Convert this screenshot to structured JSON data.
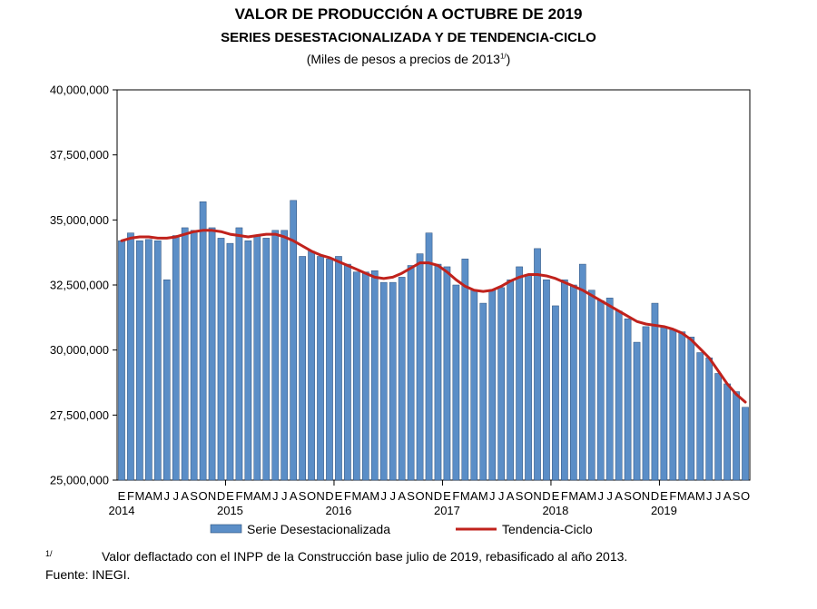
{
  "titles": {
    "main": "VALOR DE PRODUCCIÓN A OCTUBRE DE 2019",
    "sub": "SERIES DESESTACIONALIZADA Y DE TENDENCIA-CICLO",
    "unit_text": "(Miles de pesos a precios de 2013",
    "unit_sup": "1/",
    "unit_close": ")"
  },
  "footnotes": {
    "mark": "1/",
    "note": "Valor deflactado con el INPP de la Construcción base julio de 2019, rebasificado al año 2013.",
    "source": "Fuente: INEGI."
  },
  "colors": {
    "bar": "#5b8ec7",
    "bar_edge": "#2c4f7a",
    "trend": "#c0221c"
  },
  "chart_data": {
    "type": "bar",
    "y_tick_labels": [
      "25,000,000",
      "27,500,000",
      "30,000,000",
      "32,500,000",
      "35,000,000",
      "37,500,000",
      "40,000,000"
    ],
    "y_ticks": [
      25000000,
      27500000,
      30000000,
      32500000,
      35000000,
      37500000,
      40000000
    ],
    "ylim": [
      25000000,
      40000000
    ],
    "month_letters": [
      "E",
      "F",
      "M",
      "A",
      "M",
      "J",
      "J",
      "A",
      "S",
      "O",
      "N",
      "D",
      "E",
      "F",
      "M",
      "A",
      "M",
      "J",
      "J",
      "A",
      "S",
      "O",
      "N",
      "D",
      "E",
      "F",
      "M",
      "A",
      "M",
      "J",
      "J",
      "A",
      "S",
      "O",
      "N",
      "D",
      "E",
      "F",
      "M",
      "A",
      "M",
      "J",
      "J",
      "A",
      "S",
      "O",
      "N",
      "D",
      "E",
      "F",
      "M",
      "A",
      "M",
      "J",
      "J",
      "A",
      "S",
      "O",
      "N",
      "D",
      "E",
      "F",
      "M",
      "A",
      "M",
      "J",
      "J",
      "A",
      "S",
      "O"
    ],
    "year_labels": [
      {
        "label": "2014",
        "index": 0
      },
      {
        "label": "2015",
        "index": 12
      },
      {
        "label": "2016",
        "index": 24
      },
      {
        "label": "2017",
        "index": 36
      },
      {
        "label": "2018",
        "index": 48
      },
      {
        "label": "2019",
        "index": 60
      }
    ],
    "grid": false,
    "legend_position": "bottom",
    "series": [
      {
        "name": "Serie Desestacionalizada",
        "type": "bar",
        "values": [
          34200000,
          34500000,
          34200000,
          34250000,
          34200000,
          32700000,
          34400000,
          34700000,
          34600000,
          35700000,
          34700000,
          34300000,
          34100000,
          34700000,
          34200000,
          34400000,
          34300000,
          34600000,
          34600000,
          35750000,
          33600000,
          33800000,
          33600000,
          33500000,
          33600000,
          33300000,
          33000000,
          33000000,
          33050000,
          32600000,
          32600000,
          32800000,
          33250000,
          33700000,
          34500000,
          33300000,
          33200000,
          32500000,
          33500000,
          32300000,
          31800000,
          32300000,
          32400000,
          32700000,
          33200000,
          32900000,
          33900000,
          32700000,
          31700000,
          32700000,
          32500000,
          33300000,
          32300000,
          31900000,
          32000000,
          31500000,
          31200000,
          30300000,
          30900000,
          31800000,
          30900000,
          30800000,
          30700000,
          30500000,
          29900000,
          29700000,
          29100000,
          28700000,
          28400000,
          27800000
        ]
      },
      {
        "name": "Tendencia-Ciclo",
        "type": "line",
        "values": [
          34200000,
          34300000,
          34350000,
          34350000,
          34300000,
          34300000,
          34350000,
          34450000,
          34550000,
          34600000,
          34600000,
          34550000,
          34450000,
          34400000,
          34350000,
          34400000,
          34450000,
          34450000,
          34350000,
          34200000,
          34000000,
          33800000,
          33650000,
          33550000,
          33400000,
          33250000,
          33100000,
          32950000,
          32800000,
          32750000,
          32800000,
          32950000,
          33150000,
          33350000,
          33350000,
          33250000,
          33000000,
          32700000,
          32450000,
          32300000,
          32250000,
          32300000,
          32450000,
          32650000,
          32800000,
          32900000,
          32900000,
          32850000,
          32750000,
          32600000,
          32450000,
          32300000,
          32100000,
          31900000,
          31700000,
          31500000,
          31300000,
          31100000,
          31000000,
          30950000,
          30900000,
          30800000,
          30650000,
          30400000,
          30050000,
          29700000,
          29200000,
          28700000,
          28300000,
          28000000
        ]
      }
    ]
  }
}
